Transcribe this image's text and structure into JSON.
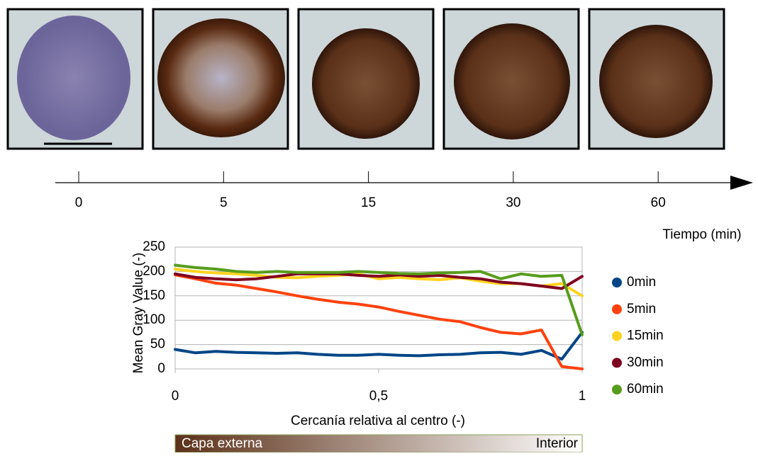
{
  "timeline": {
    "labels": [
      "0",
      "5",
      "15",
      "30",
      "60"
    ],
    "title": "Tiempo (min)"
  },
  "chart_data": {
    "type": "line",
    "x_label": "Cercanía relativa al centro (-)",
    "y_label": "Mean Gray Value (-)",
    "x": [
      0,
      0.05,
      0.1,
      0.15,
      0.2,
      0.25,
      0.3,
      0.35,
      0.4,
      0.45,
      0.5,
      0.55,
      0.6,
      0.65,
      0.7,
      0.75,
      0.8,
      0.85,
      0.9,
      0.95,
      1
    ],
    "xlim": [
      0,
      1
    ],
    "xticks": [
      0,
      {
        "value": 0.5,
        "label": "0,5"
      },
      1
    ],
    "ylim": [
      0,
      250
    ],
    "yticks": [
      0,
      50,
      100,
      150,
      200,
      250
    ],
    "grid": true,
    "legend": "right",
    "series": [
      {
        "name": "0min",
        "color": "#004586",
        "values": [
          40,
          33,
          36,
          34,
          33,
          32,
          33,
          30,
          28,
          28,
          30,
          28,
          27,
          29,
          30,
          33,
          34,
          30,
          38,
          20,
          75
        ]
      },
      {
        "name": "5min",
        "color": "#ff420e",
        "values": [
          193,
          185,
          176,
          172,
          165,
          158,
          150,
          143,
          137,
          133,
          127,
          118,
          110,
          102,
          97,
          85,
          75,
          72,
          80,
          5,
          0
        ]
      },
      {
        "name": "15min",
        "color": "#ffd320",
        "values": [
          205,
          200,
          197,
          195,
          192,
          188,
          187,
          190,
          192,
          195,
          185,
          188,
          185,
          183,
          187,
          180,
          175,
          175,
          170,
          175,
          150
        ]
      },
      {
        "name": "30min",
        "color": "#7e0021",
        "values": [
          195,
          188,
          185,
          183,
          185,
          190,
          195,
          195,
          195,
          192,
          190,
          193,
          190,
          192,
          188,
          185,
          178,
          175,
          170,
          165,
          190
        ]
      },
      {
        "name": "60min",
        "color": "#579d1c",
        "values": [
          213,
          208,
          205,
          200,
          198,
          200,
          198,
          198,
          198,
          200,
          198,
          196,
          195,
          197,
          198,
          200,
          185,
          195,
          190,
          192,
          70
        ]
      }
    ]
  },
  "gradient_bar": {
    "left": "Capa externa",
    "right": "Interior"
  }
}
